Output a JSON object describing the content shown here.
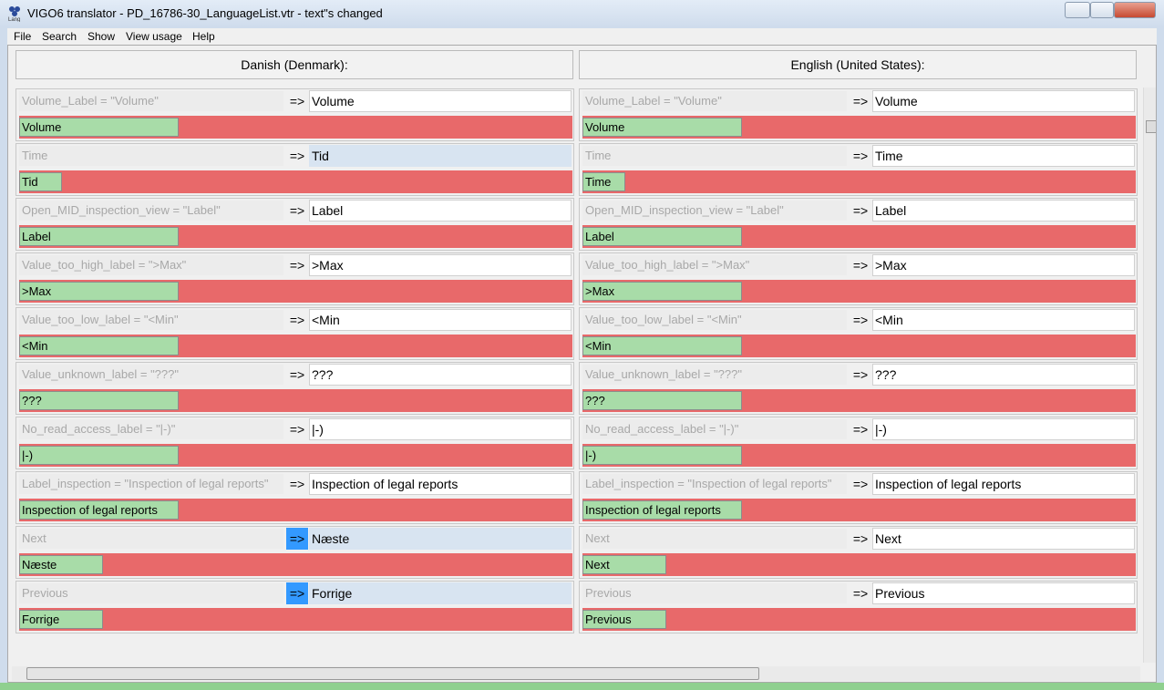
{
  "window": {
    "title": "VIGO6 translator - PD_16786-30_LanguageList.vtr - text\"s changed",
    "menu": [
      "File",
      "Search",
      "Show",
      "View usage",
      "Help"
    ]
  },
  "columns": [
    {
      "header": "Danish (Denmark):",
      "rows": [
        {
          "key": "Volume_Label = \"Volume\"",
          "arrow": "=>",
          "value": "Volume",
          "preview": "Volume"
        },
        {
          "key": "Time",
          "arrow": "=>",
          "value": "Tid",
          "preview": "Tid"
        },
        {
          "key": "Open_MID_inspection_view = \"Label\"",
          "arrow": "=>",
          "value": "Label",
          "preview": "Label"
        },
        {
          "key": "Value_too_high_label = \">Max\"",
          "arrow": "=>",
          "value": ">Max",
          "preview": ">Max"
        },
        {
          "key": "Value_too_low_label = \"<Min\"",
          "arrow": "=>",
          "value": "<Min",
          "preview": "<Min"
        },
        {
          "key": "Value_unknown_label = \"???\"",
          "arrow": "=>",
          "value": "???",
          "preview": "???"
        },
        {
          "key": "No_read_access_label = \"|-)\"",
          "arrow": "=>",
          "value": "|-)",
          "preview": "|-)"
        },
        {
          "key": "Label_inspection = \"Inspection of legal reports\"",
          "arrow": "=>",
          "value": "Inspection of legal reports",
          "preview": "Inspection of legal reports"
        },
        {
          "key": "Next",
          "arrow": "=>",
          "value": "Næste",
          "preview": "Næste"
        },
        {
          "key": "Previous",
          "arrow": "=>",
          "value": "Forrige",
          "preview": "Forrige"
        }
      ]
    },
    {
      "header": "English (United States):",
      "rows": [
        {
          "key": "Volume_Label = \"Volume\"",
          "arrow": "=>",
          "value": "Volume",
          "preview": "Volume"
        },
        {
          "key": "Time",
          "arrow": "=>",
          "value": "Time",
          "preview": "Time"
        },
        {
          "key": "Open_MID_inspection_view = \"Label\"",
          "arrow": "=>",
          "value": "Label",
          "preview": "Label"
        },
        {
          "key": "Value_too_high_label = \">Max\"",
          "arrow": "=>",
          "value": ">Max",
          "preview": ">Max"
        },
        {
          "key": "Value_too_low_label = \"<Min\"",
          "arrow": "=>",
          "value": "<Min",
          "preview": "<Min"
        },
        {
          "key": "Value_unknown_label = \"???\"",
          "arrow": "=>",
          "value": "???",
          "preview": "???"
        },
        {
          "key": "No_read_access_label = \"|-)\"",
          "arrow": "=>",
          "value": "|-)",
          "preview": "|-)"
        },
        {
          "key": "Label_inspection = \"Inspection of legal reports\"",
          "arrow": "=>",
          "value": "Inspection of legal reports",
          "preview": "Inspection of legal reports"
        },
        {
          "key": "Next",
          "arrow": "=>",
          "value": "Next",
          "preview": "Next"
        },
        {
          "key": "Previous",
          "arrow": "=>",
          "value": "Previous",
          "preview": "Previous"
        }
      ]
    }
  ]
}
